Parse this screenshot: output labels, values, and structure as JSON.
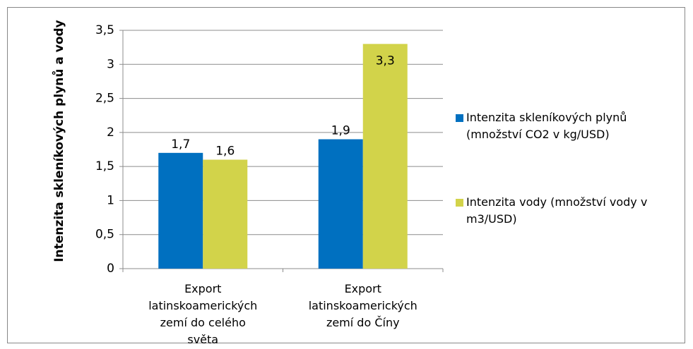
{
  "chart_data": {
    "type": "bar",
    "y_label": "Intenzita skleníkových plynů a vody",
    "categories": [
      "Export latinskoamerických zemí do celého světa",
      "Export latinskoamerických zemí do Číny"
    ],
    "series": [
      {
        "name": "Intenzita skleníkových plynů (množství CO2 v kg/USD)",
        "color": "#0070c0",
        "values": [
          1.7,
          1.9
        ],
        "value_labels": [
          "1,7",
          "1,9"
        ]
      },
      {
        "name": "Intenzita vody (množství vody v m3/USD)",
        "color": "#d2d34a",
        "values": [
          1.6,
          3.3
        ],
        "value_labels": [
          "1,6",
          "3,3"
        ]
      }
    ],
    "ylim": [
      0,
      3.5
    ],
    "yticks": [
      0,
      {
        "value": 0.5,
        "label": "0,5"
      },
      1,
      {
        "value": 1.5,
        "label": "1,5"
      },
      2,
      {
        "value": 2.5,
        "label": "2,5"
      },
      3,
      {
        "value": 3.5,
        "label": "3,5"
      }
    ],
    "grid": true,
    "legend": "right"
  }
}
